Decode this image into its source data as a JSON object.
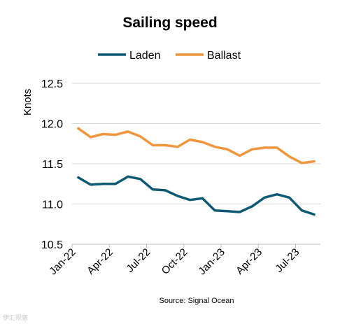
{
  "chart_data": {
    "type": "line",
    "title": "Sailing speed",
    "ylabel": "Knots",
    "xlabel": "",
    "ylim": [
      10.5,
      12.5
    ],
    "yticks": [
      "12.5",
      "12.0",
      "11.5",
      "11.0",
      "10.5"
    ],
    "ytick_values": [
      12.5,
      12.0,
      11.5,
      11.0,
      10.5
    ],
    "x": [
      "Jan-22",
      "Feb-22",
      "Mar-22",
      "Apr-22",
      "May-22",
      "Jun-22",
      "Jul-22",
      "Aug-22",
      "Sep-22",
      "Oct-22",
      "Nov-22",
      "Dec-22",
      "Jan-23",
      "Feb-23",
      "Mar-23",
      "Apr-23",
      "May-23",
      "Jun-23",
      "Jul-23",
      "Aug-23"
    ],
    "xticks": [
      "Jan-22",
      "Apr-22",
      "Jul-22",
      "Oct-22",
      "Jan-23",
      "Apr-23",
      "Jul-23"
    ],
    "xtick_index": [
      0,
      3,
      6,
      9,
      12,
      15,
      18
    ],
    "grid": true,
    "legend_position": "top",
    "series": [
      {
        "name": "Laden",
        "color": "#0e5a73",
        "values": [
          11.33,
          11.24,
          11.25,
          11.25,
          11.34,
          11.31,
          11.18,
          11.17,
          11.1,
          11.05,
          11.07,
          10.92,
          10.91,
          10.9,
          10.97,
          11.08,
          11.12,
          11.08,
          10.92,
          10.87
        ]
      },
      {
        "name": "Ballast",
        "color": "#f0963c",
        "values": [
          11.94,
          11.83,
          11.87,
          11.86,
          11.9,
          11.84,
          11.73,
          11.73,
          11.71,
          11.8,
          11.77,
          11.71,
          11.68,
          11.6,
          11.68,
          11.7,
          11.7,
          11.59,
          11.51,
          11.53
        ]
      }
    ],
    "source": "Source: Signal Ocean",
    "watermark": "伊汇观察"
  }
}
